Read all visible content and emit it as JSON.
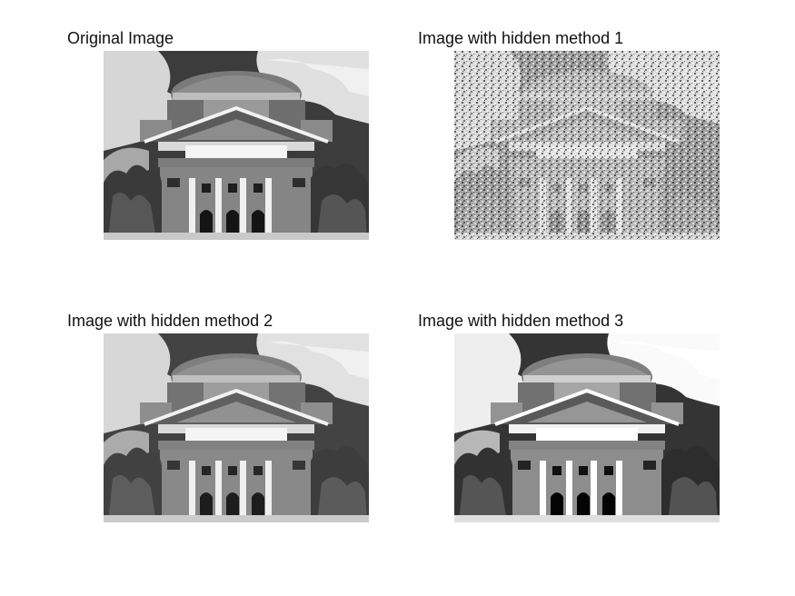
{
  "figure": {
    "panels": [
      {
        "title": "Original Image",
        "variant": "original"
      },
      {
        "title": "Image with hidden method 1",
        "variant": "noisy"
      },
      {
        "title": "Image with hidden method 2",
        "variant": "slight"
      },
      {
        "title": "Image with hidden method 3",
        "variant": "contrast"
      }
    ],
    "colors": {
      "background": "#ffffff",
      "text": "#111111"
    }
  }
}
